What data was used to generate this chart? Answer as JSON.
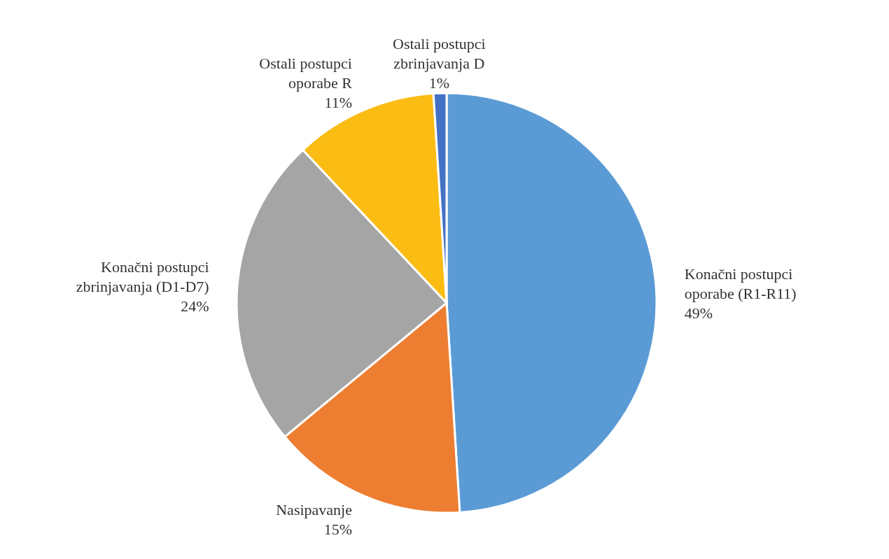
{
  "chart_data": {
    "type": "pie",
    "categories": [
      "Konačni postupci oporabe (R1-R11)",
      "Nasipavanje",
      "Konačni postupci zbrinjavanja (D1-D7)",
      "Ostali postupci oporabe R",
      "Ostali postupci zbrinjavanja D"
    ],
    "values": [
      49,
      15,
      24,
      11,
      1
    ],
    "value_labels": [
      "49%",
      "15%",
      "24%",
      "11%",
      "1%"
    ],
    "colors": [
      "#5b9bd5",
      "#ed7d31",
      "#a5a5a5",
      "#fbbc13",
      "#4472c4"
    ],
    "legend": false
  }
}
